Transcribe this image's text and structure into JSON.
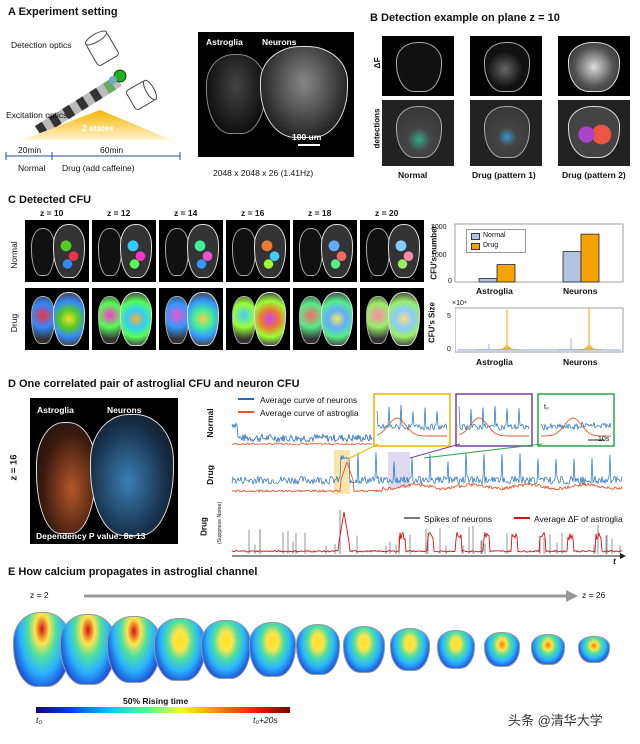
{
  "panelA": {
    "title": "A  Experiment setting",
    "detection_optics": "Detection optics",
    "excitation_optics": "Excitation optics",
    "states": "2 states",
    "t1": "20min",
    "t2": "60min",
    "normal": "Normal",
    "drug": "Drug (add caffeine)",
    "img_label_astro": "Astroglia",
    "img_label_neur": "Neurons",
    "scale": "100 um",
    "caption": "2048 x 2048 x 26 (1.41Hz)"
  },
  "panelB": {
    "title": "B  Detection example on plane z = 10",
    "row1": "ΔF",
    "row2": "detections",
    "cols": [
      "Normal",
      "Drug  (pattern 1)",
      "Drug  (pattern 2)"
    ]
  },
  "panelC": {
    "title": "C  Detected CFU",
    "z_labels": [
      "z = 10",
      "z = 12",
      "z = 14",
      "z = 16",
      "z = 18",
      "z = 20"
    ],
    "row_normal": "Normal",
    "row_drug": "Drug",
    "legend_normal": "Normal",
    "legend_drug": "Drug",
    "bar_ylabel": "CFU's number",
    "size_ylabel": "CFU's Size",
    "size_exp": "×10⁴",
    "size_ticks": [
      "5",
      "0"
    ],
    "bar_ticks": [
      "2000",
      "1000",
      "0"
    ],
    "cats": [
      "Astroglia",
      "Neurons"
    ]
  },
  "panelD": {
    "title": "D  One correlated pair of astroglial CFU and neuron CFU",
    "astro": "Astroglia",
    "neur": "Neurons",
    "z": "z = 16",
    "pvalue": "Dependency P value: 8e-13",
    "legend_neur": "Average curve of neurons",
    "legend_astro": "Average curve of astroglia",
    "row_normal": "Normal",
    "row_drug": "Drug",
    "row_drug2": "Drug",
    "row_drug2_sub": "(Suppress Noise)",
    "legend_spikes": "Spikes of neurons",
    "legend_avg": "Average ΔF of astroglia",
    "t0": "t₀",
    "t10": "10s",
    "axis_t": "t"
  },
  "panelE": {
    "title": "E  How calcium propagates in astroglial channel",
    "z_start": "z = 2",
    "z_end": "z = 26",
    "colorbar_label": "50% Rising time",
    "cb_left": "t₀",
    "cb_right": "t₀+20s"
  },
  "watermark": "头条 @清华大学",
  "chart_data": [
    {
      "type": "bar",
      "title": "",
      "categories": [
        "Astroglia",
        "Neurons"
      ],
      "series": [
        {
          "name": "Normal",
          "values": [
            120,
            1050
          ],
          "color": "#b0c4e0"
        },
        {
          "name": "Drug",
          "values": [
            600,
            1650
          ],
          "color": "#f5a300"
        }
      ],
      "xlabel": "",
      "ylabel": "CFU's number",
      "ylim": [
        0,
        2000
      ]
    }
  ],
  "colors": {
    "normal_bar": "#b0c4e0",
    "drug_bar": "#f5a300",
    "neuron_curve": "#1f6fbf",
    "astro_curve": "#e2592b",
    "spike": "#7a7a7a",
    "avg_red": "#e01010",
    "box_yellow": "#e9b700",
    "box_purple": "#7b3fa6",
    "box_green": "#27a64a"
  }
}
